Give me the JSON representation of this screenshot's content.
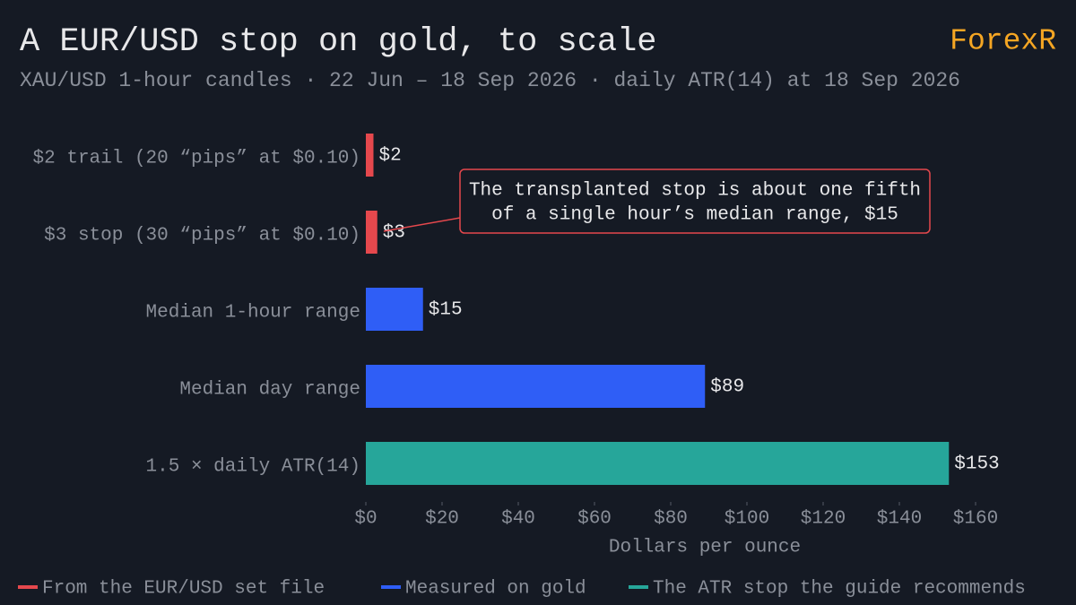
{
  "chart_data": {
    "type": "bar",
    "orientation": "horizontal",
    "title": "A EUR/USD stop on gold, to scale",
    "subtitle": "XAU/USD 1-hour candles · 22 Jun – 18 Sep 2026 · daily ATR(14) at 18 Sep 2026",
    "brand": "ForexR",
    "categories": [
      "$2 trail (20 “pips” at $0.10)",
      "$3 stop (30 “pips” at $0.10)",
      "Median 1-hour range",
      "Median day range",
      "1.5 × daily ATR(14)"
    ],
    "values": [
      2,
      3,
      15,
      89,
      153
    ],
    "value_labels": [
      "$2",
      "$3",
      "$15",
      "$89",
      "$153"
    ],
    "colors": [
      "#e5484d",
      "#e5484d",
      "#2f5ef6",
      "#2f5ef6",
      "#26a69a"
    ],
    "xlabel": "Dollars per ounce",
    "xlim": [
      0,
      160
    ],
    "xticks": [
      {
        "value": 0,
        "label": "$0"
      },
      {
        "value": 20,
        "label": "$20"
      },
      {
        "value": 40,
        "label": "$40"
      },
      {
        "value": 60,
        "label": "$60"
      },
      {
        "value": 80,
        "label": "$80"
      },
      {
        "value": 100,
        "label": "$100"
      },
      {
        "value": 120,
        "label": "$120"
      },
      {
        "value": 140,
        "label": "$140"
      },
      {
        "value": 160,
        "label": "$160"
      }
    ],
    "annotation": [
      "The transplanted stop is about one fifth",
      "of a single hour’s median range, $15"
    ],
    "legend": [
      {
        "label": "From the EUR/USD set file",
        "color": "#e5484d"
      },
      {
        "label": "Measured on gold",
        "color": "#2f5ef6"
      },
      {
        "label": "The ATR stop the guide recommends",
        "color": "#26a69a"
      }
    ]
  }
}
